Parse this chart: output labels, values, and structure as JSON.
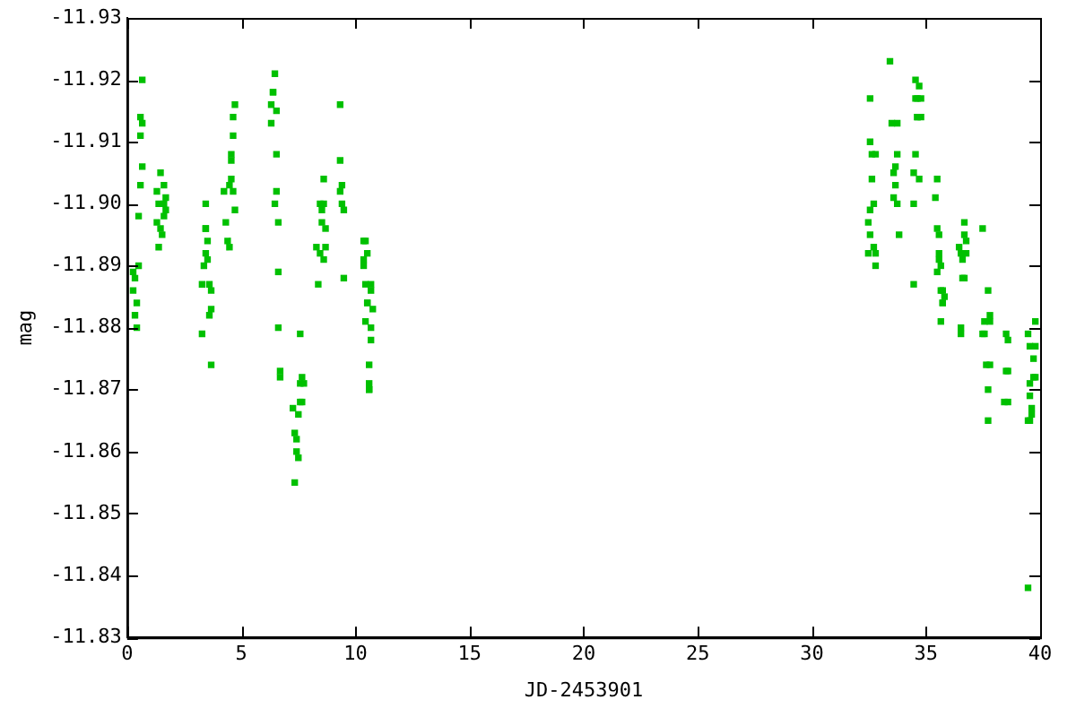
{
  "chart_data": {
    "type": "scatter",
    "xlabel": "JD-2453901",
    "ylabel": "mag",
    "xlim": [
      0,
      40
    ],
    "xticks": [
      0,
      5,
      10,
      15,
      20,
      25,
      30,
      35,
      40
    ],
    "ylim": [
      -11.83,
      -11.93
    ],
    "yticks": [
      -11.93,
      -11.92,
      -11.91,
      {
        "value": -11.9,
        "label": "-11.90"
      },
      -11.89,
      -11.88,
      -11.87,
      -11.86,
      -11.85,
      -11.84,
      -11.83
    ],
    "grid": false,
    "legend": false,
    "marker": "square",
    "series": [
      {
        "color": "#00c000",
        "x": [
          0.66,
          0.58,
          0.66,
          0.58,
          0.66,
          0.58,
          0.5,
          0.5,
          0.26,
          0.34,
          0.26,
          0.42,
          0.34,
          0.42,
          1.46,
          1.61,
          1.3,
          1.69,
          1.38,
          1.61,
          1.69,
          1.61,
          1.3,
          1.46,
          1.53,
          1.38,
          3.44,
          3.44,
          3.44,
          3.52,
          3.44,
          3.52,
          3.36,
          3.28,
          3.6,
          3.68,
          3.68,
          3.6,
          3.28,
          3.68,
          4.72,
          4.64,
          4.64,
          4.56,
          4.56,
          4.56,
          4.48,
          4.24,
          4.64,
          4.72,
          4.32,
          4.4,
          4.48,
          6.47,
          6.39,
          6.39,
          6.31,
          6.54,
          6.31,
          6.54,
          6.54,
          6.47,
          6.62,
          6.62,
          6.62,
          6.7,
          6.7,
          7.58,
          7.66,
          7.58,
          7.74,
          7.58,
          7.66,
          7.26,
          7.5,
          7.34,
          7.42,
          7.42,
          7.5,
          7.34,
          8.61,
          8.45,
          8.61,
          8.53,
          8.53,
          8.69,
          8.29,
          8.45,
          8.69,
          8.61,
          8.37,
          9.33,
          9.33,
          9.41,
          9.33,
          9.41,
          9.49,
          9.49,
          10.36,
          10.44,
          10.52,
          10.36,
          10.36,
          10.44,
          10.68,
          10.68,
          10.52,
          10.52,
          10.76,
          10.44,
          10.68,
          10.68,
          10.6,
          10.6,
          10.6,
          10.6,
          33.42,
          34.54,
          34.7,
          32.55,
          34.54,
          34.78,
          34.62,
          34.62,
          34.78,
          34.62,
          33.5,
          33.74,
          32.55,
          32.63,
          32.79,
          33.74,
          34.54,
          33.66,
          33.58,
          34.46,
          34.7,
          35.49,
          32.63,
          33.66,
          33.58,
          35.41,
          32.71,
          33.74,
          34.46,
          32.55,
          32.47,
          35.49,
          32.55,
          33.82,
          35.57,
          32.71,
          32.47,
          32.79,
          32.79,
          35.57,
          35.57,
          35.65,
          35.49,
          34.46,
          35.65,
          35.73,
          35.81,
          35.73,
          35.73,
          35.65,
          36.68,
          37.48,
          36.68,
          36.76,
          36.45,
          36.53,
          36.76,
          36.6,
          36.68,
          36.6,
          37.72,
          37.8,
          36.53,
          36.53,
          37.56,
          37.8,
          37.48,
          37.56,
          38.51,
          38.59,
          37.64,
          37.8,
          38.51,
          38.59,
          37.72,
          38.43,
          38.59,
          37.72,
          39.79,
          39.47,
          39.55,
          39.79,
          39.71,
          39.79,
          39.71,
          39.55,
          39.55,
          39.63,
          39.63,
          39.55,
          39.47,
          39.47
        ],
        "values": [
          -11.92,
          -11.914,
          -11.913,
          -11.911,
          -11.906,
          -11.903,
          -11.898,
          -11.89,
          -11.889,
          -11.888,
          -11.886,
          -11.884,
          -11.882,
          -11.88,
          -11.905,
          -11.903,
          -11.902,
          -11.901,
          -11.9,
          -11.9,
          -11.899,
          -11.898,
          -11.897,
          -11.896,
          -11.895,
          -11.893,
          -11.9,
          -11.896,
          -11.896,
          -11.894,
          -11.892,
          -11.891,
          -11.89,
          -11.887,
          -11.887,
          -11.886,
          -11.883,
          -11.882,
          -11.879,
          -11.874,
          -11.916,
          -11.914,
          -11.911,
          -11.908,
          -11.907,
          -11.904,
          -11.903,
          -11.902,
          -11.902,
          -11.899,
          -11.897,
          -11.894,
          -11.893,
          -11.921,
          -11.918,
          -11.918,
          -11.916,
          -11.915,
          -11.913,
          -11.908,
          -11.902,
          -11.9,
          -11.897,
          -11.889,
          -11.88,
          -11.873,
          -11.872,
          -11.879,
          -11.872,
          -11.871,
          -11.871,
          -11.868,
          -11.868,
          -11.867,
          -11.866,
          -11.863,
          -11.862,
          -11.86,
          -11.859,
          -11.855,
          -11.904,
          -11.9,
          -11.9,
          -11.899,
          -11.897,
          -11.896,
          -11.893,
          -11.892,
          -11.893,
          -11.891,
          -11.887,
          -11.916,
          -11.907,
          -11.903,
          -11.902,
          -11.9,
          -11.899,
          -11.888,
          -11.894,
          -11.894,
          -11.892,
          -11.891,
          -11.89,
          -11.887,
          -11.887,
          -11.886,
          -11.884,
          -11.884,
          -11.883,
          -11.881,
          -11.88,
          -11.878,
          -11.874,
          -11.871,
          -11.87,
          -11.87,
          -11.923,
          -11.92,
          -11.919,
          -11.917,
          -11.917,
          -11.917,
          -11.917,
          -11.914,
          -11.914,
          -11.914,
          -11.913,
          -11.913,
          -11.91,
          -11.908,
          -11.908,
          -11.908,
          -11.908,
          -11.906,
          -11.905,
          -11.905,
          -11.904,
          -11.904,
          -11.904,
          -11.903,
          -11.901,
          -11.901,
          -11.9,
          -11.9,
          -11.9,
          -11.899,
          -11.897,
          -11.896,
          -11.895,
          -11.895,
          -11.895,
          -11.893,
          -11.892,
          -11.892,
          -11.89,
          -11.892,
          -11.891,
          -11.89,
          -11.889,
          -11.887,
          -11.886,
          -11.886,
          -11.885,
          -11.884,
          -11.884,
          -11.881,
          -11.897,
          -11.896,
          -11.895,
          -11.894,
          -11.893,
          -11.892,
          -11.892,
          -11.891,
          -11.888,
          -11.888,
          -11.886,
          -11.882,
          -11.88,
          -11.879,
          -11.881,
          -11.881,
          -11.879,
          -11.879,
          -11.879,
          -11.878,
          -11.874,
          -11.874,
          -11.873,
          -11.873,
          -11.87,
          -11.868,
          -11.868,
          -11.865,
          -11.881,
          -11.879,
          -11.877,
          -11.877,
          -11.875,
          -11.872,
          -11.872,
          -11.871,
          -11.869,
          -11.867,
          -11.866,
          -11.865,
          -11.865,
          -11.838
        ]
      }
    ]
  }
}
